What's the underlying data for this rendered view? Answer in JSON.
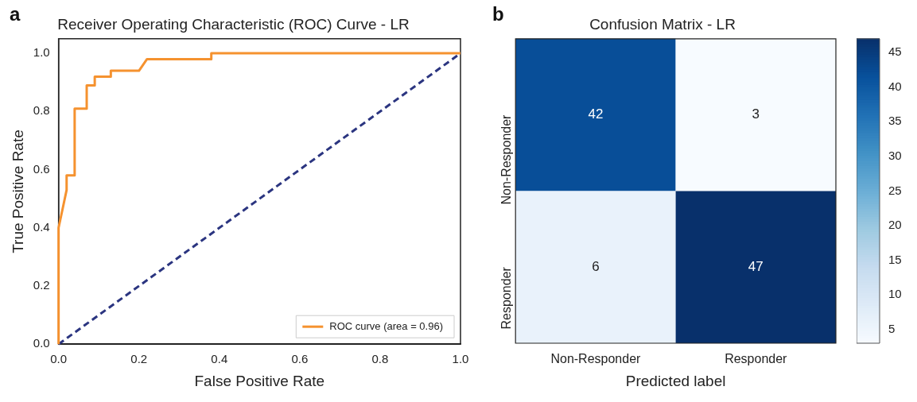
{
  "chart_data": [
    {
      "type": "line",
      "title": "Receiver Operating Characteristic (ROC) Curve - LR",
      "xlabel": "False Positive Rate",
      "ylabel": "True Positive Rate",
      "annotations": [
        "a"
      ],
      "series": [
        {
          "name": "ROC curve (area = 0.96)",
          "color": "#f5922f",
          "x": [
            0,
            0,
            0.02,
            0.02,
            0.04,
            0.04,
            0.07,
            0.07,
            0.09,
            0.09,
            0.13,
            0.13,
            0.2,
            0.22,
            0.38,
            0.38,
            1
          ],
          "values": [
            0,
            0.4,
            0.53,
            0.58,
            0.58,
            0.81,
            0.81,
            0.89,
            0.89,
            0.92,
            0.92,
            0.94,
            0.94,
            0.98,
            0.98,
            1,
            1
          ]
        },
        {
          "color": "#2b3580",
          "x": [
            0,
            1
          ],
          "values": [
            0,
            1
          ],
          "line_style": "dashed"
        }
      ],
      "xlim": [
        0,
        1
      ],
      "ylim": [
        0,
        1.05
      ],
      "xticks": [
        {
          "value": 0,
          "label": "0.0"
        },
        {
          "value": 0.2,
          "label": "0.2"
        },
        {
          "value": 0.4,
          "label": "0.4"
        },
        {
          "value": 0.6,
          "label": "0.6"
        },
        {
          "value": 0.8,
          "label": "0.8"
        },
        {
          "value": 1,
          "label": "1.0"
        }
      ],
      "yticks": [
        {
          "value": 0,
          "label": "0.0"
        },
        {
          "value": 0.2,
          "label": "0.2"
        },
        {
          "value": 0.4,
          "label": "0.4"
        },
        {
          "value": 0.6,
          "label": "0.6"
        },
        {
          "value": 0.8,
          "label": "0.8"
        },
        {
          "value": 1,
          "label": "1.0"
        }
      ],
      "grid": false,
      "legend": "bottom right",
      "marker": "none"
    },
    {
      "type": "heatmap",
      "title": "Confusion Matrix - LR",
      "xlabel": "Predicted label",
      "annotations": [
        "b"
      ],
      "categories": [
        "Non-Responder",
        "Responder"
      ],
      "y_categories": [
        "Non-Responder",
        "Responder"
      ],
      "cells": [
        [
          42,
          3
        ],
        [
          6,
          47
        ]
      ],
      "clim": [
        3,
        47
      ],
      "cticks": [
        5,
        10,
        15,
        20,
        25,
        30,
        35,
        40,
        45
      ],
      "data_labels": true
    }
  ]
}
